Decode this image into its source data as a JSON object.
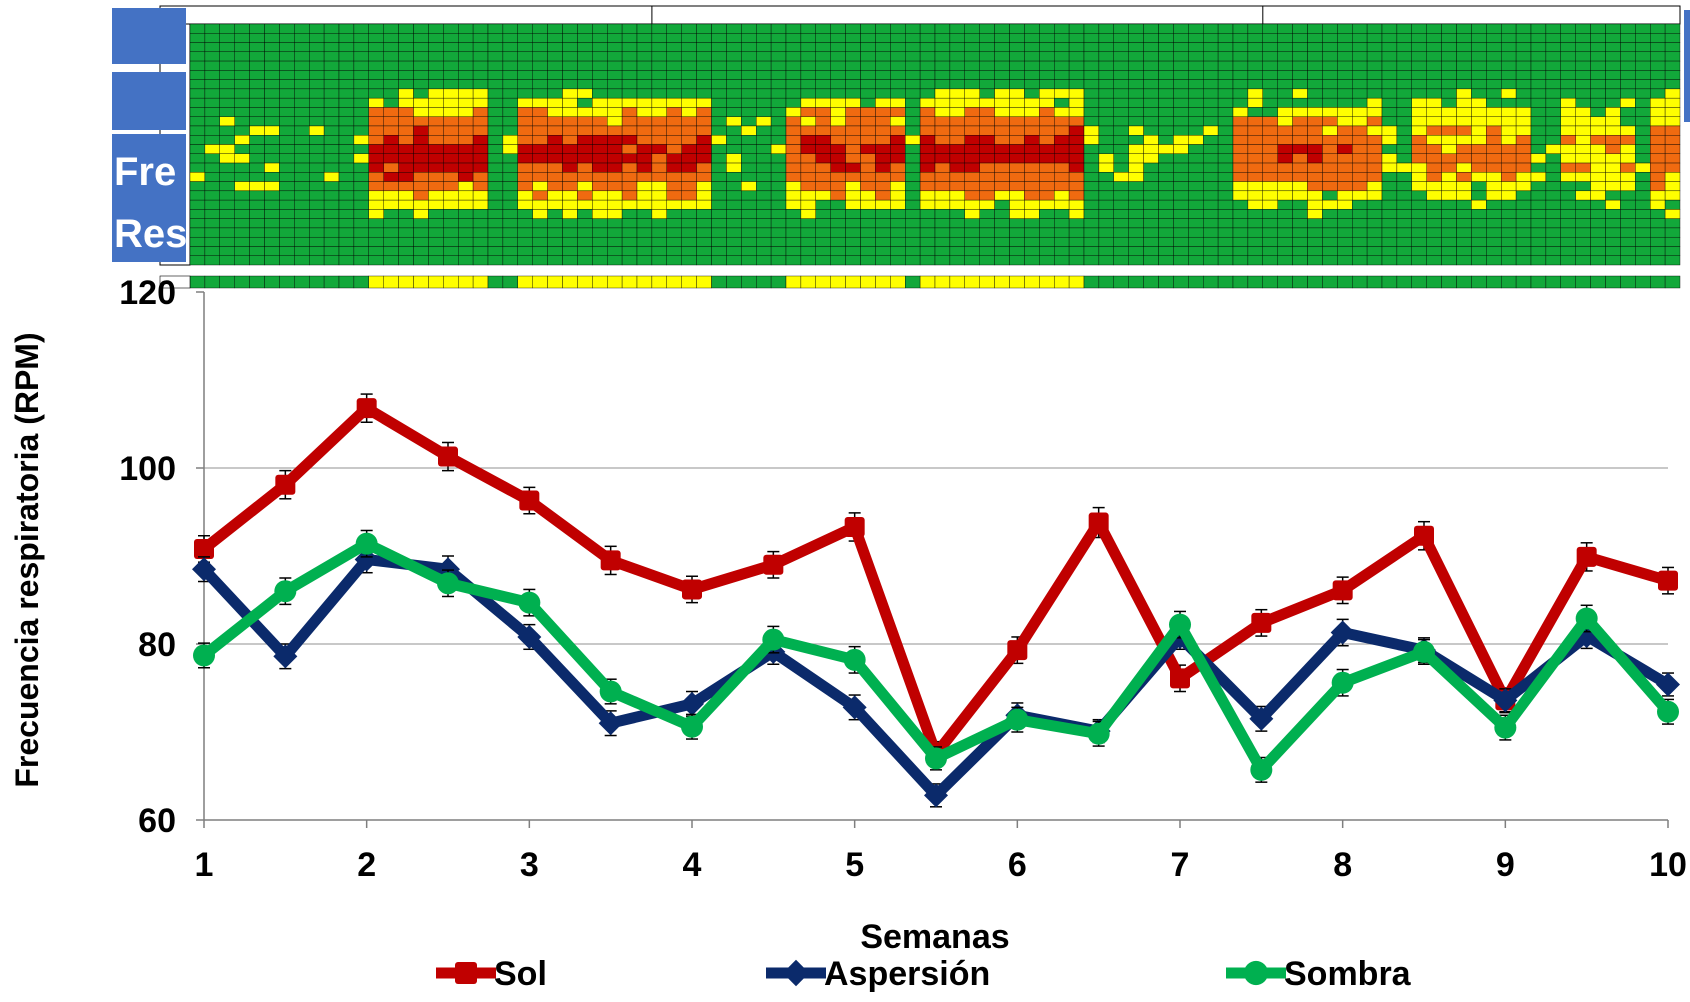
{
  "side_tab": {
    "line1": "Fre",
    "line2": "Res"
  },
  "heatmap": {
    "rows": 26,
    "cols": 100,
    "palette": {
      "green": "#12a83a",
      "yellow": "#ffff00",
      "orange": "#f06a10",
      "red": "#c00000"
    },
    "top_header": "#ffffff",
    "bottom_header": "#ffffff"
  },
  "chart_data": {
    "type": "line",
    "title": "",
    "xlabel": "Semanas",
    "ylabel": "Frecuencia respiratoria (RPM)",
    "xlim": [
      1,
      10
    ],
    "ylim": [
      60,
      120
    ],
    "xticks": [
      1,
      2,
      3,
      4,
      5,
      6,
      7,
      8,
      9,
      10
    ],
    "yticks": [
      60,
      80,
      100,
      120
    ],
    "grid": "horizontal",
    "legend_position": "bottom",
    "x": [
      1,
      1.5,
      2,
      2.5,
      3,
      3.5,
      4,
      4.5,
      5,
      5.5,
      6,
      6.5,
      7,
      7.5,
      8,
      8.5,
      9,
      9.5,
      10
    ],
    "series": [
      {
        "name": "Sol",
        "color": "#c00000",
        "marker": "square",
        "values": [
          90.8,
          98.1,
          106.8,
          101.3,
          96.3,
          89.5,
          86.2,
          89.0,
          93.3,
          67.5,
          79.3,
          93.8,
          76.1,
          82.4,
          86.1,
          92.3,
          73.6,
          89.9,
          87.2
        ],
        "errors": [
          1.5,
          1.6,
          1.6,
          1.6,
          1.5,
          1.6,
          1.5,
          1.5,
          1.6,
          1.4,
          1.5,
          1.7,
          1.5,
          1.5,
          1.5,
          1.6,
          1.4,
          1.6,
          1.5
        ]
      },
      {
        "name": "Aspersión",
        "color": "#0b2a6b",
        "marker": "diamond",
        "values": [
          88.5,
          78.6,
          89.6,
          88.5,
          80.8,
          71.0,
          73.2,
          79.1,
          72.8,
          62.8,
          71.9,
          70.1,
          80.8,
          71.5,
          81.3,
          79.3,
          73.6,
          80.9,
          75.4
        ],
        "errors": [
          1.4,
          1.4,
          1.5,
          1.5,
          1.4,
          1.4,
          1.4,
          1.4,
          1.4,
          1.3,
          1.4,
          1.3,
          1.4,
          1.4,
          1.5,
          1.4,
          1.3,
          1.4,
          1.3
        ]
      },
      {
        "name": "Sombra",
        "color": "#00b050",
        "marker": "circle",
        "values": [
          78.7,
          86.0,
          91.4,
          86.9,
          84.7,
          74.6,
          70.6,
          80.5,
          78.2,
          67.0,
          71.4,
          69.8,
          82.2,
          65.7,
          75.6,
          79.1,
          70.5,
          82.9,
          72.3
        ],
        "errors": [
          1.4,
          1.5,
          1.5,
          1.5,
          1.5,
          1.4,
          1.4,
          1.5,
          1.5,
          1.3,
          1.4,
          1.4,
          1.5,
          1.4,
          1.5,
          1.4,
          1.4,
          1.5,
          1.4
        ]
      }
    ]
  }
}
